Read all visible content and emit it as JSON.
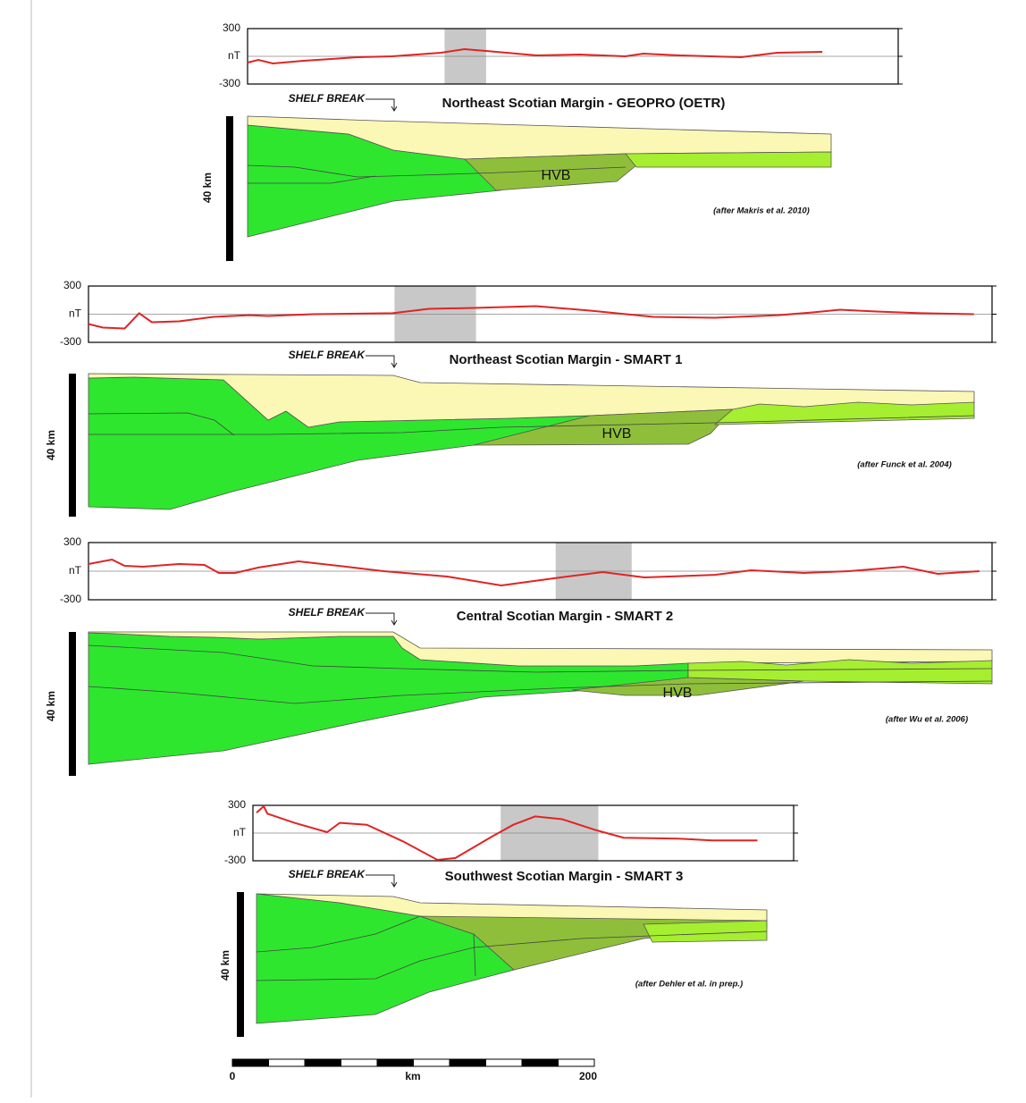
{
  "chart_data": [
    {
      "type": "line",
      "title": "Northeast Scotian Margin - GEOPRO (OETR)",
      "annotation": "SHELF BREAK",
      "x": [
        0,
        6,
        14,
        31,
        61,
        80,
        107,
        120,
        132,
        160,
        184,
        209,
        219,
        239,
        273,
        293,
        318
      ],
      "series": [
        {
          "color": "#e02424",
          "values": [
            -68,
            -39,
            -77,
            -48,
            -10,
            0,
            39,
            77,
            58,
            10,
            19,
            0,
            29,
            10,
            -10,
            39,
            48
          ]
        }
      ],
      "highlight": [
        109,
        132
      ],
      "xlim": [
        0,
        360
      ],
      "ylim": [
        -300,
        300
      ],
      "yticks": [
        -300,
        {
          "value": 0,
          "label": "nT"
        },
        300
      ],
      "grid": true
    },
    {
      "type": "line",
      "title": "Northeast Scotian Margin - SMART 1",
      "annotation": "SHELF BREAK",
      "x": [
        0,
        8,
        20,
        28,
        35,
        50,
        69,
        89,
        99,
        124,
        168,
        188,
        213,
        247,
        277,
        312,
        346,
        381,
        400,
        415,
        435,
        460,
        489
      ],
      "series": [
        {
          "color": "#e02424",
          "values": [
            -105,
            -143,
            -152,
            10,
            -86,
            -76,
            -29,
            -10,
            -19,
            0,
            10,
            57,
            67,
            86,
            38,
            -29,
            -38,
            -10,
            19,
            48,
            29,
            10,
            0
          ]
        }
      ],
      "highlight": [
        169,
        214
      ],
      "xlim": [
        0,
        499
      ],
      "ylim": [
        -300,
        300
      ],
      "yticks": [
        -300,
        {
          "value": 0,
          "label": "nT"
        },
        300
      ],
      "grid": true
    },
    {
      "type": "line",
      "title": "Central Scotian Margin - SMART 2",
      "annotation": "SHELF BREAK",
      "x": [
        0,
        13,
        20,
        30,
        50,
        64,
        72,
        81,
        94,
        116,
        138,
        163,
        198,
        228,
        257,
        284,
        307,
        346,
        366,
        395,
        420,
        450,
        469,
        492
      ],
      "series": [
        {
          "color": "#e02424",
          "values": [
            75,
            122,
            56,
            47,
            75,
            66,
            -19,
            -19,
            38,
            103,
            56,
            0,
            -56,
            -150,
            -75,
            -9,
            -66,
            -38,
            9,
            -19,
            0,
            47,
            -28,
            0
          ]
        }
      ],
      "highlight": [
        258,
        300
      ],
      "xlim": [
        0,
        499
      ],
      "ylim": [
        -300,
        300
      ],
      "yticks": [
        -300,
        {
          "value": 0,
          "label": "nT"
        },
        300
      ],
      "grid": true
    },
    {
      "type": "line",
      "title": "Southwest Scotian Margin - SMART 3",
      "annotation": "SHELF BREAK",
      "x": [
        2,
        6,
        8,
        23,
        41,
        48,
        63,
        83,
        102,
        112,
        132,
        144,
        156,
        171,
        190,
        205,
        235,
        254,
        279
      ],
      "series": [
        {
          "color": "#e02424",
          "values": [
            220,
            290,
            210,
            110,
            10,
            110,
            90,
            -90,
            -290,
            -270,
            -40,
            90,
            180,
            150,
            30,
            -50,
            -60,
            -80,
            -80
          ]
        }
      ],
      "highlight": [
        137,
        191
      ],
      "xlim": [
        0,
        299
      ],
      "ylim": [
        -300,
        300
      ],
      "yticks": [
        -300,
        {
          "value": 0,
          "label": "nT"
        },
        300
      ],
      "grid": true
    }
  ],
  "sections": [
    {
      "depth_label": "40 km",
      "hvb_label": "HVB",
      "citation": "(after Makris et al. 2010)"
    },
    {
      "depth_label": "40 km",
      "hvb_label": "HVB",
      "citation": "(after Funck et al. 2004)"
    },
    {
      "depth_label": "40 km",
      "hvb_label": "HVB",
      "citation": "(after Wu et al. 2006)"
    },
    {
      "depth_label": "40 km",
      "citation": "(after Dehler et al. in prep.)"
    }
  ],
  "scale_bar": {
    "ticks": [
      0,
      200
    ],
    "label": "km"
  }
}
